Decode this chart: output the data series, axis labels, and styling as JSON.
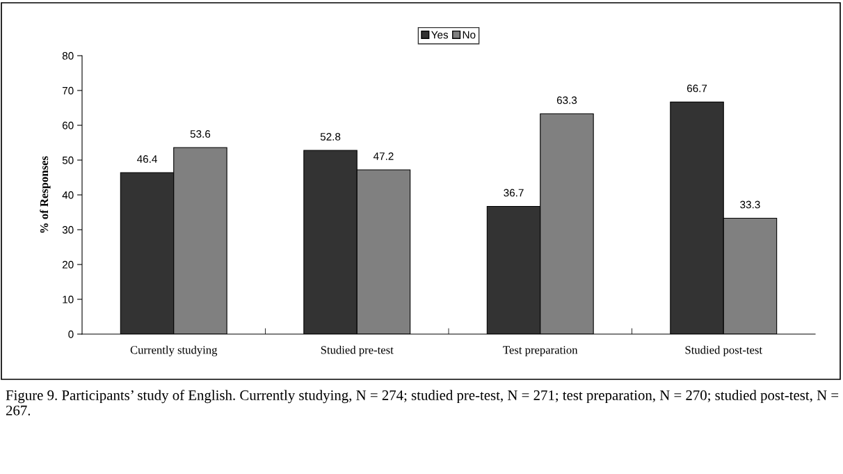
{
  "chart_data": {
    "type": "bar",
    "ylabel": "% of Responses",
    "categories": [
      "Currently studying",
      "Studied pre-test",
      "Test preparation",
      "Studied post-test"
    ],
    "series": [
      {
        "name": "Yes",
        "color": "#333333",
        "values": [
          46.4,
          52.8,
          36.7,
          66.7
        ]
      },
      {
        "name": "No",
        "color": "#808080",
        "values": [
          53.6,
          47.2,
          63.3,
          33.3
        ]
      }
    ],
    "ylim": [
      0,
      80
    ],
    "yticks": [
      0,
      10,
      20,
      30,
      40,
      50,
      60,
      70,
      80
    ],
    "data_labels": true,
    "grid": false,
    "legend": "top",
    "annotations": [
      "Figure 9. Participants’ study of English. Currently studying, N = 274; studied pre-test, N = 271; test preparation, N = 270; studied post-test, N = 267."
    ]
  }
}
